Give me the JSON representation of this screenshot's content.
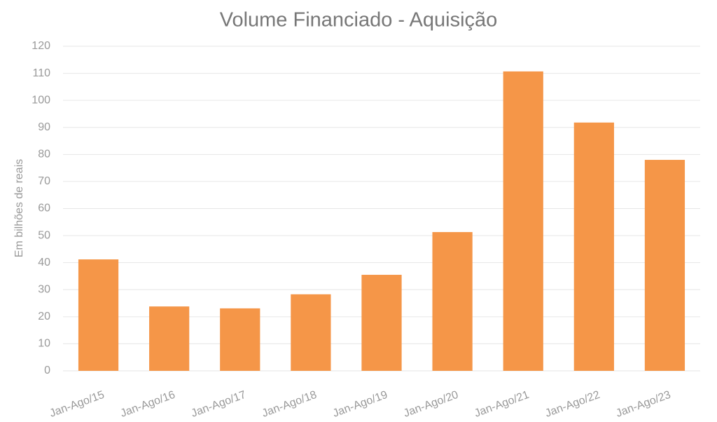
{
  "chart_data": {
    "type": "bar",
    "title": "Volume Financiado - Aquisição",
    "y_label": "Em bilhões de reais",
    "categories": [
      "Jan-Ago/15",
      "Jan-Ago/16",
      "Jan-Ago/17",
      "Jan-Ago/18",
      "Jan-Ago/19",
      "Jan-Ago/20",
      "Jan-Ago/21",
      "Jan-Ago/22",
      "Jan-Ago/23"
    ],
    "values": [
      41.2,
      23.8,
      23.1,
      28.3,
      35.5,
      51.3,
      110.7,
      91.8,
      78.0
    ],
    "color": "#f59648",
    "ylim": [
      0,
      120
    ],
    "yticks": [
      0,
      10,
      20,
      30,
      40,
      50,
      60,
      70,
      80,
      90,
      100,
      110,
      120
    ],
    "grid": true
  }
}
